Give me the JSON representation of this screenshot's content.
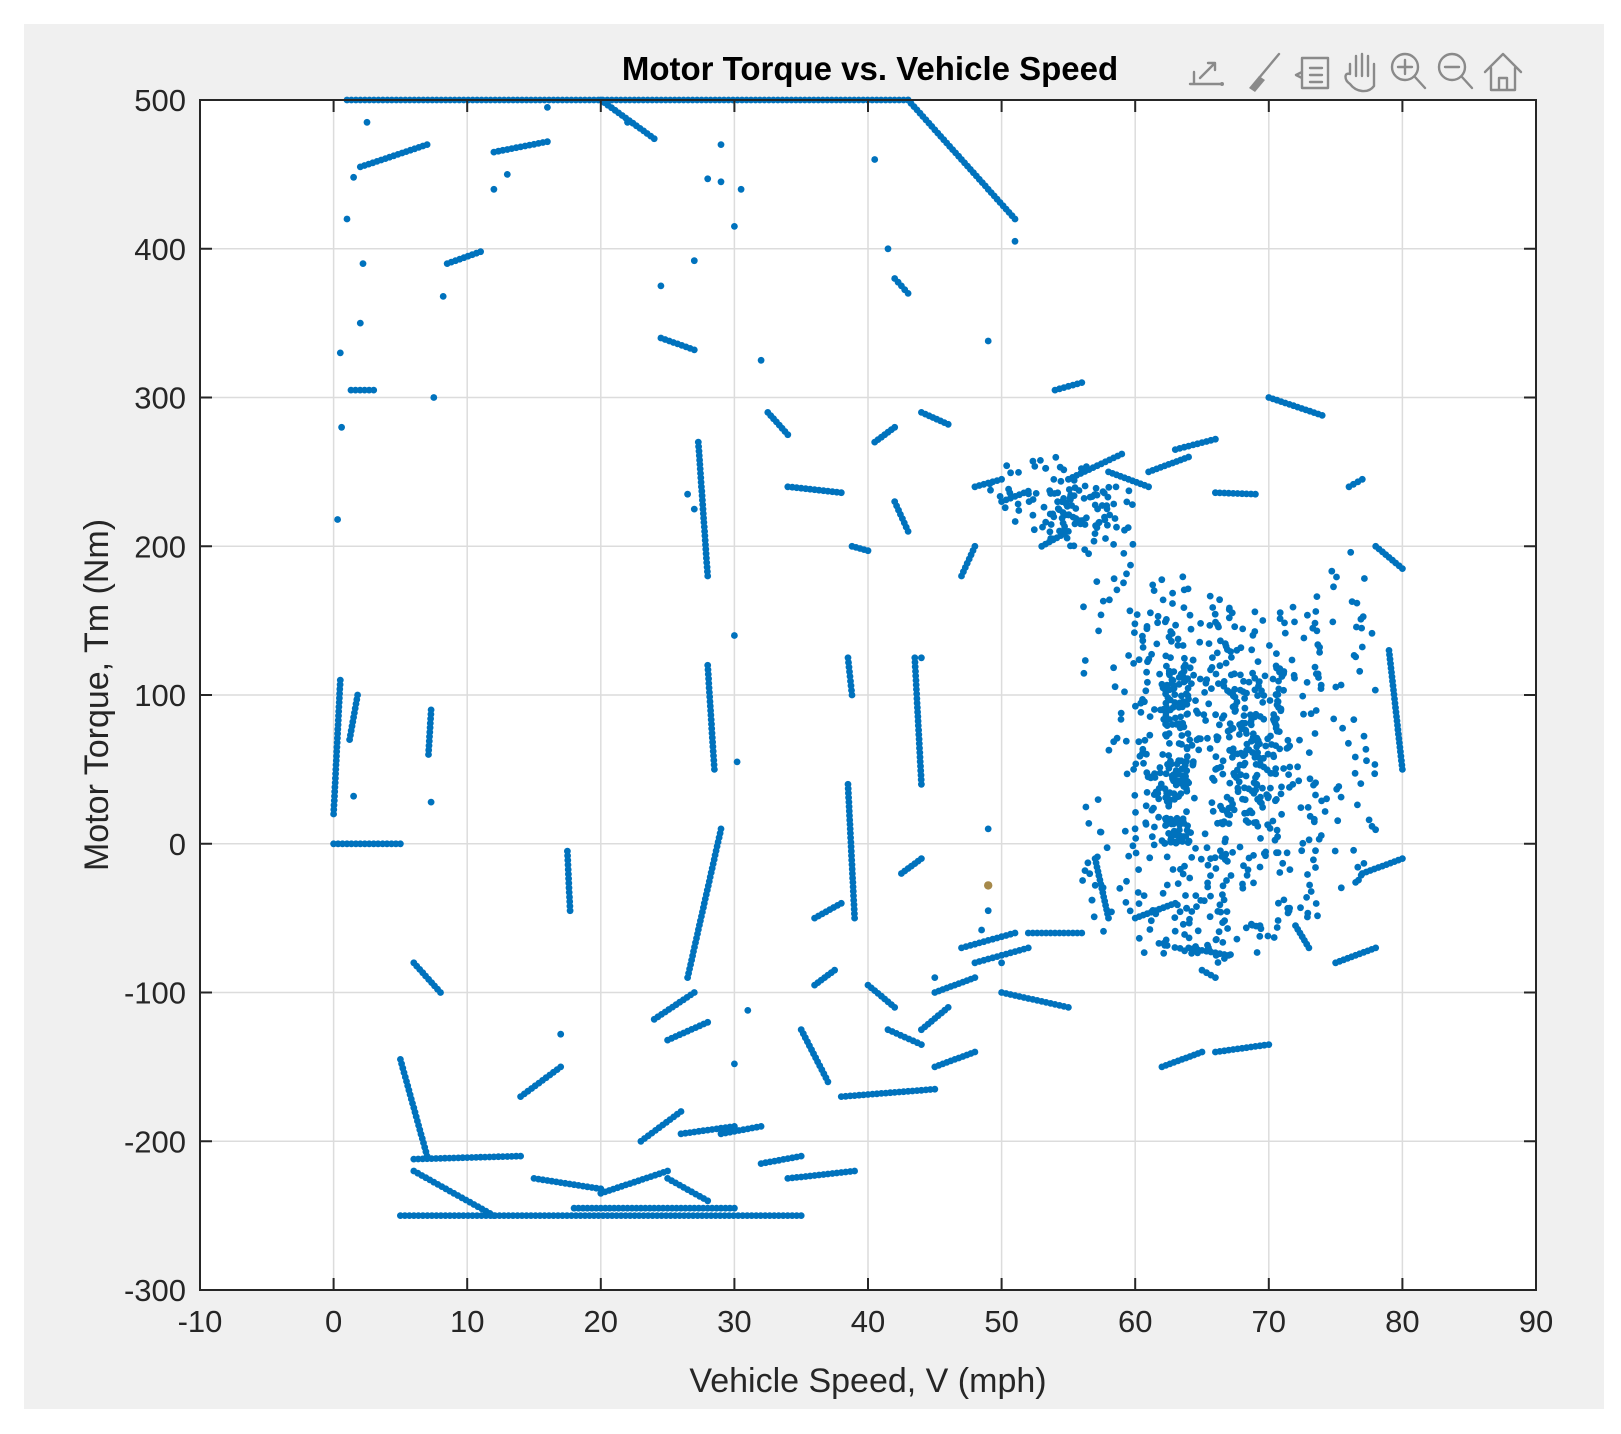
{
  "chart_data": {
    "type": "scatter",
    "title": "Motor Torque vs. Vehicle Speed",
    "xlabel": "Vehicle Speed, V (mph)",
    "ylabel": "Motor Torque, Tm (Nm)",
    "xlim": [
      -10,
      90
    ],
    "ylim": [
      -300,
      500
    ],
    "xticks": [
      "-10",
      "0",
      "10",
      "20",
      "30",
      "40",
      "50",
      "60",
      "70",
      "80",
      "90"
    ],
    "yticks": [
      "500",
      "400",
      "300",
      "200",
      "100",
      "0",
      "-100",
      "-200",
      "-300"
    ],
    "grid": true,
    "marker_color": "#0072bd",
    "highlight_color": "#a6894a",
    "highlighted_point": [
      49,
      -28
    ],
    "segments": [
      [
        1,
        500,
        43,
        500
      ],
      [
        43,
        500,
        51,
        420
      ],
      [
        5,
        -250,
        35,
        -250
      ],
      [
        6,
        -212,
        14,
        -210
      ],
      [
        0,
        0,
        5,
        0
      ],
      [
        0.5,
        110,
        0,
        20
      ],
      [
        1.8,
        100,
        1.2,
        70
      ],
      [
        1.3,
        305,
        3,
        305
      ],
      [
        2,
        455,
        7,
        470
      ],
      [
        8.5,
        390,
        11,
        398
      ],
      [
        12,
        465,
        16,
        472
      ],
      [
        20,
        500,
        24,
        474
      ],
      [
        7.3,
        90,
        7.1,
        60
      ],
      [
        6,
        -80,
        8,
        -100
      ],
      [
        5,
        -145,
        7,
        -210
      ],
      [
        6,
        -220,
        12,
        -250
      ],
      [
        17.5,
        -5,
        17.7,
        -45
      ],
      [
        14,
        -170,
        17,
        -150
      ],
      [
        15,
        -225,
        20,
        -232
      ],
      [
        18,
        -245,
        30,
        -245
      ],
      [
        20,
        -235,
        25,
        -220
      ],
      [
        23,
        -200,
        26,
        -180
      ],
      [
        24,
        -118,
        27,
        -100
      ],
      [
        25,
        -132,
        28,
        -120
      ],
      [
        25,
        -225,
        28,
        -240
      ],
      [
        26.5,
        -90,
        29,
        10
      ],
      [
        27.3,
        270,
        28,
        180
      ],
      [
        28,
        120,
        28.5,
        50
      ],
      [
        24.5,
        340,
        27,
        332
      ],
      [
        26,
        -195,
        30,
        -190
      ],
      [
        29,
        -195,
        32,
        -190
      ],
      [
        32,
        -215,
        35,
        -210
      ],
      [
        34,
        -225,
        39,
        -220
      ],
      [
        32.5,
        290,
        34,
        275
      ],
      [
        34,
        240,
        38,
        236
      ],
      [
        35,
        -125,
        37,
        -160
      ],
      [
        36,
        -95,
        37.5,
        -85
      ],
      [
        36,
        -50,
        38,
        -40
      ],
      [
        38,
        -170,
        45,
        -165
      ],
      [
        38.5,
        40,
        39,
        -50
      ],
      [
        38.5,
        125,
        38.8,
        100
      ],
      [
        38.8,
        200,
        40,
        197
      ],
      [
        40,
        -95,
        42,
        -110
      ],
      [
        40.5,
        270,
        42,
        280
      ],
      [
        42,
        380,
        43,
        370
      ],
      [
        42,
        230,
        43,
        210
      ],
      [
        42.5,
        -20,
        44,
        -10
      ],
      [
        41.5,
        -125,
        44,
        -135
      ],
      [
        43.5,
        125,
        44,
        40
      ],
      [
        44,
        290,
        46,
        282
      ],
      [
        44,
        -125,
        46,
        -110
      ],
      [
        45,
        -150,
        48,
        -140
      ],
      [
        45,
        -100,
        48,
        -90
      ],
      [
        47,
        180,
        48,
        200
      ],
      [
        47,
        -70,
        51,
        -60
      ],
      [
        48,
        240,
        50,
        245
      ],
      [
        50,
        230,
        52,
        237
      ],
      [
        50,
        -100,
        55,
        -110
      ],
      [
        48,
        -80,
        52,
        -70
      ],
      [
        52,
        -60,
        56,
        -60
      ],
      [
        53,
        200,
        55,
        210
      ],
      [
        54,
        305,
        56,
        310
      ],
      [
        55,
        245,
        59,
        262
      ],
      [
        57,
        -10,
        58,
        -50
      ],
      [
        58,
        250,
        61,
        240
      ],
      [
        61,
        250,
        64,
        260
      ],
      [
        63,
        265,
        66,
        272
      ],
      [
        66,
        236,
        69,
        235
      ],
      [
        60,
        -50,
        63,
        -40
      ],
      [
        62,
        -150,
        65,
        -140
      ],
      [
        64,
        -70,
        67,
        -75
      ],
      [
        65,
        -85,
        66,
        -90
      ],
      [
        66,
        -140,
        70,
        -135
      ],
      [
        70,
        300,
        74,
        288
      ],
      [
        72,
        -55,
        73,
        -70
      ],
      [
        75,
        -80,
        78,
        -70
      ],
      [
        77,
        -20,
        80,
        -10
      ],
      [
        79,
        130,
        80,
        50
      ],
      [
        78,
        200,
        80,
        185
      ],
      [
        76,
        240,
        77,
        245
      ]
    ],
    "points": [
      [
        0.5,
        330
      ],
      [
        0.6,
        280
      ],
      [
        0.3,
        218
      ],
      [
        1,
        420
      ],
      [
        1.5,
        448
      ],
      [
        2.5,
        485
      ],
      [
        2.2,
        390
      ],
      [
        2,
        350
      ],
      [
        7.5,
        300
      ],
      [
        8.2,
        368
      ],
      [
        7.3,
        28
      ],
      [
        1.5,
        32
      ],
      [
        12,
        440
      ],
      [
        13,
        450
      ],
      [
        16,
        495
      ],
      [
        22,
        485
      ],
      [
        24.5,
        375
      ],
      [
        27,
        392
      ],
      [
        28,
        447
      ],
      [
        29,
        470
      ],
      [
        30,
        415
      ],
      [
        30.5,
        440
      ],
      [
        29,
        445
      ],
      [
        30,
        140
      ],
      [
        30.2,
        55
      ],
      [
        30,
        -148
      ],
      [
        31,
        -112
      ],
      [
        32,
        325
      ],
      [
        40.5,
        460
      ],
      [
        41.5,
        400
      ],
      [
        49,
        338
      ],
      [
        51,
        405
      ],
      [
        26.5,
        235
      ],
      [
        27,
        225
      ],
      [
        17,
        -128
      ],
      [
        44,
        125
      ],
      [
        45,
        -90
      ],
      [
        49,
        10
      ],
      [
        49,
        -45
      ],
      [
        48.5,
        -58
      ],
      [
        50,
        -80
      ]
    ],
    "clusters": [
      [
        49,
        57,
        50,
        210,
        260
      ],
      [
        53,
        60,
        70,
        200,
        240
      ],
      [
        56,
        61,
        70,
        -60,
        200
      ],
      [
        60,
        64,
        140,
        -75,
        180
      ],
      [
        64,
        67,
        110,
        -80,
        175
      ],
      [
        66,
        71,
        150,
        -75,
        165
      ],
      [
        71,
        74,
        70,
        -50,
        160
      ],
      [
        73,
        78,
        60,
        -30,
        205
      ],
      [
        62,
        64,
        150,
        0,
        120
      ],
      [
        67,
        71,
        120,
        10,
        115
      ]
    ]
  }
}
